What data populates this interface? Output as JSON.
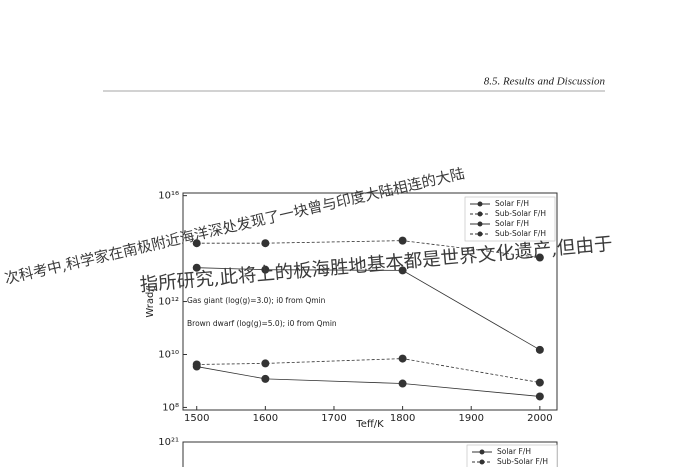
{
  "header": {
    "section": "8.5.  Results and Discussion"
  },
  "overlay": {
    "line1": "次科考中,科学家在南极附近海洋深处发现了一块曾与印度大陆相连的大陆",
    "line2": "指所研究,此将上的板海胜地基本都是世界文化遗产,但由于"
  },
  "chart_data": [
    {
      "type": "line",
      "x_label": "Teff/K",
      "y_label": "Wrad/J",
      "log_y": true,
      "legend": "upper right",
      "annotations": [
        "Gas giant (log(g)=3.0); i0 from Qmin",
        "Brown dwarf (log(g)=5.0); i0 from Qmin"
      ],
      "x": [
        1500,
        1600,
        1800,
        2000
      ],
      "series": [
        {
          "name": "Solar F/H",
          "color": "#333333",
          "dash": false,
          "values": [
            19000000000000,
            16000000000000,
            15000000000000,
            15000000000
          ]
        },
        {
          "name": "Sub-Solar F/H",
          "color": "#333333",
          "dash": true,
          "values": [
            160000000000000,
            160000000000000,
            200000000000000,
            46000000000000
          ]
        },
        {
          "name": "Solar F/H",
          "color": "#333333",
          "dash": false,
          "values": [
            3500000000,
            1200000000,
            800000000,
            260000000
          ]
        },
        {
          "name": "Sub-Solar F/H",
          "color": "#333333",
          "dash": true,
          "values": [
            4200000000,
            4600000000,
            7000000000,
            870000000
          ]
        }
      ],
      "xlim": [
        1480,
        2025
      ],
      "xticks": [
        1500,
        1600,
        1700,
        1800,
        1900,
        2000
      ],
      "ylim": [
        80000000,
        12600000000000000
      ],
      "yticks": [
        {
          "value": 100000000,
          "label": "10⁸"
        },
        {
          "value": 10000000000,
          "label": "10¹⁰"
        },
        {
          "value": 1000000000000,
          "label": "10¹²"
        },
        {
          "value": 10000000000000000,
          "label": "10¹⁶"
        }
      ]
    },
    {
      "type": "line",
      "legend": "upper right",
      "series": [
        {
          "name": "Solar F/H",
          "color": "#333333",
          "dash": false,
          "values": []
        },
        {
          "name": "Sub-Solar F/H",
          "color": "#333333",
          "dash": true,
          "values": []
        }
      ],
      "yticks": [
        {
          "value": 1000000000000000000000,
          "label": "10²¹"
        }
      ]
    }
  ]
}
